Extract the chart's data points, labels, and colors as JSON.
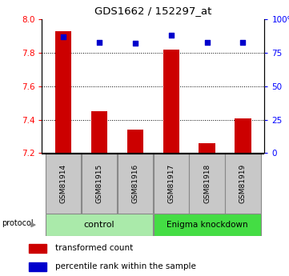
{
  "title": "GDS1662 / 152297_at",
  "categories": [
    "GSM81914",
    "GSM81915",
    "GSM81916",
    "GSM81917",
    "GSM81918",
    "GSM81919"
  ],
  "red_values": [
    7.93,
    7.45,
    7.34,
    7.82,
    7.26,
    7.41
  ],
  "blue_values": [
    87,
    83,
    82,
    88,
    83,
    83
  ],
  "ylim_left": [
    7.2,
    8.0
  ],
  "ylim_right": [
    0,
    100
  ],
  "yticks_left": [
    7.2,
    7.4,
    7.6,
    7.8,
    8.0
  ],
  "yticks_right": [
    0,
    25,
    50,
    75,
    100
  ],
  "ytick_labels_right": [
    "0",
    "25",
    "50",
    "75",
    "100%"
  ],
  "grid_lines": [
    7.4,
    7.6,
    7.8
  ],
  "control_label": "control",
  "knockdown_label": "Enigma knockdown",
  "protocol_label": "protocol",
  "legend_red": "transformed count",
  "legend_blue": "percentile rank within the sample",
  "bar_color": "#CC0000",
  "dot_color": "#0000CC",
  "control_color": "#AAEAAA",
  "knockdown_color": "#44DD44",
  "xtick_bg": "#C8C8C8"
}
